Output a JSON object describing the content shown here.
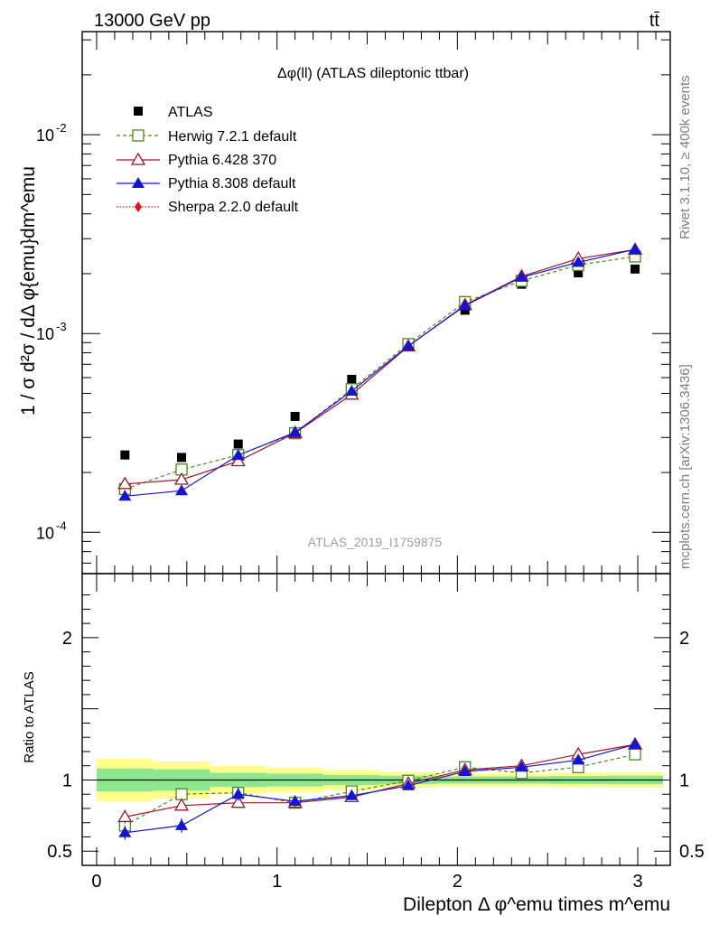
{
  "header": {
    "left": "13000 GeV pp",
    "right": "tt̄",
    "side_top": "Rivet 3.1.10, ≥ 400k events",
    "side_bottom": "mcplots.cern.ch [arXiv:1306.3436]",
    "watermark": "ATLAS_2019_I1759875"
  },
  "chart_data": [
    {
      "type": "scatter",
      "title": "Δφ(ll) (ATLAS dileptonic ttbar)",
      "ylabel": "1 / σ  d²σ / dΔ φ{emu}dm^emu",
      "yscale": "log",
      "ylim": [
        6.2e-05,
        0.033
      ],
      "xlim": [
        -0.08,
        3.18
      ],
      "y_ticks": [
        {
          "value": 0.0001,
          "label": "10^-4"
        },
        {
          "value": 0.001,
          "label": "10^-3"
        },
        {
          "value": 0.01,
          "label": "10^-2"
        }
      ],
      "legend_position": "top-left",
      "x": [
        0.157,
        0.471,
        0.785,
        1.1,
        1.414,
        1.728,
        2.042,
        2.356,
        2.67,
        2.985
      ],
      "series": [
        {
          "name": "ATLAS",
          "color": "#000000",
          "marker": "filled-square",
          "line": "none",
          "values": [
            0.000245,
            0.000238,
            0.000278,
            0.000383,
            0.000588,
            0.000885,
            0.00131,
            0.00177,
            0.00202,
            0.00211
          ]
        },
        {
          "name": "Herwig 7.2.1 default",
          "color": "#4a8a1c",
          "marker": "open-square",
          "line": "dashed",
          "values": [
            0.000165,
            0.000207,
            0.000245,
            0.000315,
            0.000525,
            0.000885,
            0.00144,
            0.00184,
            0.00221,
            0.00244
          ]
        },
        {
          "name": "Pythia 6.428 370",
          "color": "#a0172a",
          "marker": "open-triangle",
          "line": "solid",
          "values": [
            0.000175,
            0.000184,
            0.000228,
            0.000316,
            0.000493,
            0.000862,
            0.00139,
            0.00194,
            0.00238,
            0.00264
          ]
        },
        {
          "name": "Pythia 8.308 default",
          "color": "#1414d6",
          "marker": "filled-triangle",
          "line": "solid",
          "values": [
            0.000152,
            0.000162,
            0.000244,
            0.000318,
            0.000513,
            0.000866,
            0.00138,
            0.00192,
            0.00228,
            0.00265
          ]
        },
        {
          "name": "Sherpa 2.2.0 default",
          "color": "#e01414",
          "marker": "filled-diamond",
          "line": "dotted",
          "values": []
        }
      ]
    },
    {
      "type": "scatter",
      "title": "",
      "xlabel": "Dilepton Δ φ^emu times m^emu",
      "ylabel": "Ratio to ATLAS",
      "ylim": [
        0.4,
        2.45
      ],
      "xlim": [
        -0.08,
        3.18
      ],
      "x_ticks": [
        0,
        1,
        2,
        3
      ],
      "y_ticks": [
        0.5,
        1,
        2
      ],
      "band_edges": [
        0,
        0.314,
        0.628,
        0.942,
        1.256,
        1.57,
        1.884,
        2.198,
        2.512,
        2.826,
        3.14
      ],
      "band_inner": [
        0.08,
        0.075,
        0.05,
        0.045,
        0.035,
        0.03,
        0.025,
        0.025,
        0.028,
        0.03
      ],
      "band_outer": [
        0.15,
        0.13,
        0.1,
        0.085,
        0.07,
        0.055,
        0.045,
        0.045,
        0.05,
        0.055
      ],
      "band_inner_color": "#8ee68e",
      "band_outer_color": "#ffff8c",
      "x": [
        0.157,
        0.471,
        0.785,
        1.1,
        1.414,
        1.728,
        2.042,
        2.356,
        2.67,
        2.985
      ],
      "series": [
        {
          "name": "Herwig 7.2.1 default",
          "color": "#4a8a1c",
          "marker": "open-square",
          "line": "dashed",
          "values": [
            0.68,
            0.9,
            0.91,
            0.84,
            0.92,
            0.995,
            1.09,
            1.05,
            1.09,
            1.18
          ],
          "errors": [
            0.035,
            0.04,
            0.03,
            0.03,
            0.02,
            0.015,
            0.012,
            0.012,
            0.015,
            0.015
          ]
        },
        {
          "name": "Pythia 6.428 370",
          "color": "#a0172a",
          "marker": "open-triangle",
          "line": "solid",
          "values": [
            0.74,
            0.82,
            0.84,
            0.84,
            0.88,
            0.975,
            1.07,
            1.1,
            1.18,
            1.25
          ],
          "errors": [
            0.045,
            0.035,
            0.035,
            0.03,
            0.02,
            0.015,
            0.012,
            0.012,
            0.015,
            0.015
          ]
        },
        {
          "name": "Pythia 8.308 default",
          "color": "#1414d6",
          "marker": "filled-triangle",
          "line": "solid",
          "values": [
            0.63,
            0.68,
            0.9,
            0.85,
            0.89,
            0.96,
            1.06,
            1.09,
            1.14,
            1.25
          ],
          "errors": [
            0.05,
            0.05,
            0.045,
            0.04,
            0.025,
            0.015,
            0.012,
            0.012,
            0.015,
            0.015
          ]
        }
      ]
    }
  ]
}
